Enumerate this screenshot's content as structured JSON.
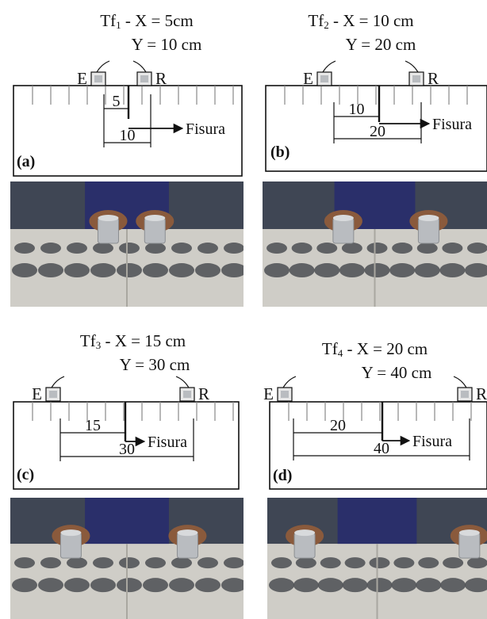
{
  "colors": {
    "ink": "#111111",
    "concrete": "#cfcdc7",
    "wet_spot": "#4b4d52",
    "shirt": "#2a2f6a",
    "skin": "#8a5a3c",
    "sensor": "#b9bcc0"
  },
  "panels": [
    {
      "tag": "(a)",
      "title_base": "Tf",
      "title_index": "1",
      "title_rest": " - X = 5cm",
      "subtitle": "Y = 10 cm",
      "emitter_label": "E",
      "receiver_label": "R",
      "x_label": "5",
      "y_label": "10",
      "crack_label": "Fisura",
      "x_cm": 5,
      "y_cm": 10,
      "photo_icon": "ultrasound-test-photo"
    },
    {
      "tag": "(b)",
      "title_base": "Tf",
      "title_index": "2",
      "title_rest": " - X = 10 cm",
      "subtitle": "Y = 20 cm",
      "emitter_label": "E",
      "receiver_label": "R",
      "x_label": "10",
      "y_label": "20",
      "crack_label": "Fisura",
      "x_cm": 10,
      "y_cm": 20,
      "photo_icon": "ultrasound-test-photo"
    },
    {
      "tag": "(c)",
      "title_base": "Tf",
      "title_index": "3",
      "title_rest": " - X = 15 cm",
      "subtitle": "Y = 30 cm",
      "emitter_label": "E",
      "receiver_label": "R",
      "x_label": "15",
      "y_label": "30",
      "crack_label": "Fisura",
      "x_cm": 15,
      "y_cm": 30,
      "photo_icon": "ultrasound-test-photo"
    },
    {
      "tag": "(d)",
      "title_base": "Tf",
      "title_index": "4",
      "title_rest": " - X = 20 cm",
      "subtitle": "Y = 40 cm",
      "emitter_label": "E",
      "receiver_label": "R",
      "x_label": "20",
      "y_label": "40",
      "crack_label": "Fisura",
      "x_cm": 20,
      "y_cm": 40,
      "photo_icon": "ultrasound-test-photo"
    }
  ]
}
